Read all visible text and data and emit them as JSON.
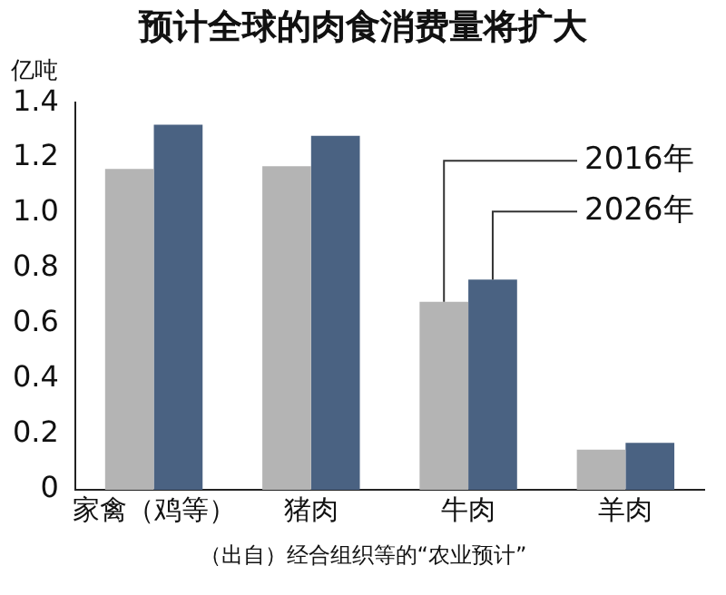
{
  "chart_data": {
    "type": "bar",
    "title": "预计全球的肉食消费量将扩大",
    "ylabel": "亿吨",
    "categories": [
      "家禽（鸡等）",
      "猪肉",
      "牛肉",
      "羊肉"
    ],
    "series": [
      {
        "name": "2016年",
        "color": "#b4b4b4",
        "values": [
          1.16,
          1.17,
          0.68,
          0.145
        ]
      },
      {
        "name": "2026年",
        "color": "#4a6282",
        "values": [
          1.32,
          1.28,
          0.76,
          0.17
        ]
      }
    ],
    "ylim": [
      0,
      1.4
    ],
    "yticks": [
      0,
      0.2,
      0.4,
      0.6,
      0.8,
      {
        "value": 1.0,
        "label": "1.0"
      },
      1.2,
      1.4
    ],
    "legend": "top right",
    "annotations": [
      "（出自）经合组织等的“农业预计”"
    ]
  }
}
